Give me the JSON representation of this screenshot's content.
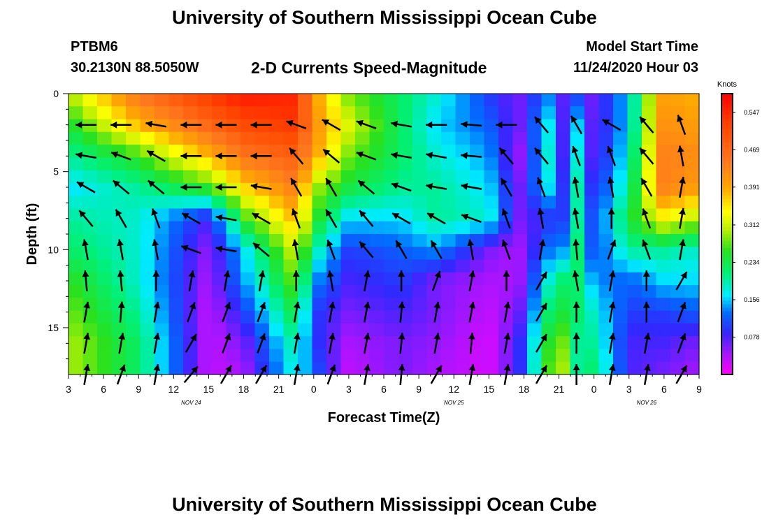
{
  "header": {
    "title": "University of Southern Mississippi Ocean Cube",
    "station_id": "PTBM6",
    "station_coords": "30.2130N 88.5050W",
    "plot_title": "2-D Currents Speed-Magnitude",
    "model_label": "Model Start Time",
    "model_time": "11/24/2020 Hour 03"
  },
  "footer": {
    "title": "University of Southern Mississippi Ocean Cube"
  },
  "chart_data": {
    "type": "heatmap",
    "title": "2-D Currents Speed-Magnitude",
    "xlabel": "Forecast Time(Z)",
    "ylabel": "Depth (ft)",
    "x_tick_labels": [
      "3",
      "6",
      "9",
      "12",
      "15",
      "18",
      "21",
      "0",
      "3",
      "6",
      "9",
      "12",
      "15",
      "18",
      "21",
      "0",
      "3",
      "6",
      "9"
    ],
    "x_range_hours": [
      0,
      54
    ],
    "date_labels": [
      {
        "text": "NOV 24",
        "hour": 10.5
      },
      {
        "text": "NOV 25",
        "hour": 33
      },
      {
        "text": "NOV 26",
        "hour": 49.5
      }
    ],
    "y_ticks": [
      0,
      5,
      10,
      15
    ],
    "y_range_ft": [
      0,
      18
    ],
    "colorbar": {
      "unit": "Knots",
      "min": 0.0,
      "max": 0.586,
      "tick_values": [
        0.078,
        0.156,
        0.234,
        0.312,
        0.391,
        0.469,
        0.547
      ],
      "tick_labels": [
        "0.078",
        "0.156",
        "0.234",
        "0.312",
        "0.391",
        "0.469",
        "0.547"
      ]
    },
    "grid_hours": [
      0,
      6,
      12,
      15,
      19.5,
      21,
      24,
      28.5,
      31.5,
      36,
      38.5,
      41.5,
      42.5,
      43.5,
      45,
      48,
      51,
      54
    ],
    "grid_depths_ft": [
      0,
      2,
      4,
      6,
      8,
      10,
      12,
      14,
      16,
      18
    ],
    "speed_grid_knots": [
      [
        0.3,
        0.45,
        0.53,
        0.56,
        0.55,
        0.4,
        0.28,
        0.22,
        0.18,
        0.1,
        0.06,
        0.14,
        0.06,
        0.1,
        0.06,
        0.16,
        0.4,
        0.38
      ],
      [
        0.24,
        0.38,
        0.47,
        0.51,
        0.53,
        0.42,
        0.32,
        0.22,
        0.16,
        0.12,
        0.06,
        0.18,
        0.06,
        0.16,
        0.06,
        0.16,
        0.42,
        0.4
      ],
      [
        0.2,
        0.26,
        0.38,
        0.45,
        0.48,
        0.4,
        0.28,
        0.22,
        0.18,
        0.14,
        0.04,
        0.2,
        0.06,
        0.18,
        0.06,
        0.18,
        0.44,
        0.42
      ],
      [
        0.16,
        0.2,
        0.26,
        0.36,
        0.44,
        0.3,
        0.24,
        0.2,
        0.2,
        0.16,
        0.06,
        0.18,
        0.08,
        0.2,
        0.08,
        0.2,
        0.44,
        0.4
      ],
      [
        0.2,
        0.18,
        0.08,
        0.26,
        0.38,
        0.26,
        0.16,
        0.16,
        0.2,
        0.18,
        0.06,
        0.1,
        0.1,
        0.2,
        0.1,
        0.24,
        0.34,
        0.3
      ],
      [
        0.22,
        0.18,
        0.05,
        0.16,
        0.32,
        0.2,
        0.1,
        0.12,
        0.14,
        0.06,
        0.04,
        0.14,
        0.14,
        0.22,
        0.1,
        0.2,
        0.2,
        0.18
      ],
      [
        0.26,
        0.18,
        0.04,
        0.14,
        0.28,
        0.14,
        0.08,
        0.1,
        0.06,
        0.04,
        0.04,
        0.2,
        0.22,
        0.22,
        0.14,
        0.12,
        0.16,
        0.16
      ],
      [
        0.28,
        0.2,
        0.03,
        0.1,
        0.24,
        0.1,
        0.06,
        0.08,
        0.06,
        0.03,
        0.06,
        0.24,
        0.24,
        0.22,
        0.18,
        0.1,
        0.1,
        0.12
      ],
      [
        0.3,
        0.22,
        0.03,
        0.06,
        0.2,
        0.1,
        0.04,
        0.06,
        0.05,
        0.02,
        0.08,
        0.28,
        0.28,
        0.2,
        0.2,
        0.08,
        0.08,
        0.06
      ],
      [
        0.3,
        0.22,
        0.03,
        0.04,
        0.18,
        0.12,
        0.03,
        0.06,
        0.04,
        0.02,
        0.08,
        0.3,
        0.3,
        0.2,
        0.22,
        0.08,
        0.06,
        0.04
      ]
    ],
    "vector_hours": [
      1.5,
      4.5,
      7.5,
      10.5,
      13.5,
      16.5,
      19.5,
      22.5,
      25.5,
      28.5,
      31.5,
      34.5,
      37.5,
      40.5,
      43.5,
      46.5,
      49.5,
      52.5
    ],
    "vector_depths_ft": [
      2,
      4,
      6,
      8,
      10,
      12,
      14,
      16,
      18
    ],
    "vector_angles_deg": [
      [
        180,
        180,
        170,
        180,
        180,
        180,
        160,
        150,
        160,
        170,
        180,
        175,
        180,
        130,
        120,
        150,
        130,
        110
      ],
      [
        170,
        160,
        150,
        180,
        180,
        180,
        130,
        140,
        160,
        170,
        170,
        175,
        130,
        130,
        110,
        110,
        130,
        100
      ],
      [
        150,
        140,
        140,
        180,
        180,
        170,
        120,
        120,
        140,
        160,
        170,
        170,
        120,
        110,
        100,
        100,
        120,
        80
      ],
      [
        130,
        120,
        110,
        150,
        170,
        150,
        110,
        120,
        130,
        150,
        150,
        160,
        110,
        100,
        100,
        90,
        110,
        80
      ],
      [
        100,
        100,
        100,
        160,
        170,
        140,
        100,
        110,
        130,
        120,
        120,
        100,
        110,
        80,
        95,
        70,
        110,
        80
      ],
      [
        95,
        95,
        90,
        80,
        80,
        80,
        90,
        100,
        80,
        90,
        70,
        80,
        90,
        60,
        100,
        80,
        90,
        60
      ],
      [
        80,
        85,
        80,
        70,
        70,
        70,
        80,
        80,
        80,
        85,
        80,
        80,
        80,
        60,
        90,
        80,
        90,
        70
      ],
      [
        80,
        80,
        80,
        60,
        70,
        70,
        80,
        80,
        80,
        85,
        80,
        85,
        80,
        60,
        90,
        80,
        80,
        70
      ],
      [
        80,
        70,
        80,
        50,
        60,
        60,
        80,
        70,
        80,
        85,
        60,
        80,
        80,
        60,
        90,
        80,
        80,
        60
      ]
    ]
  }
}
